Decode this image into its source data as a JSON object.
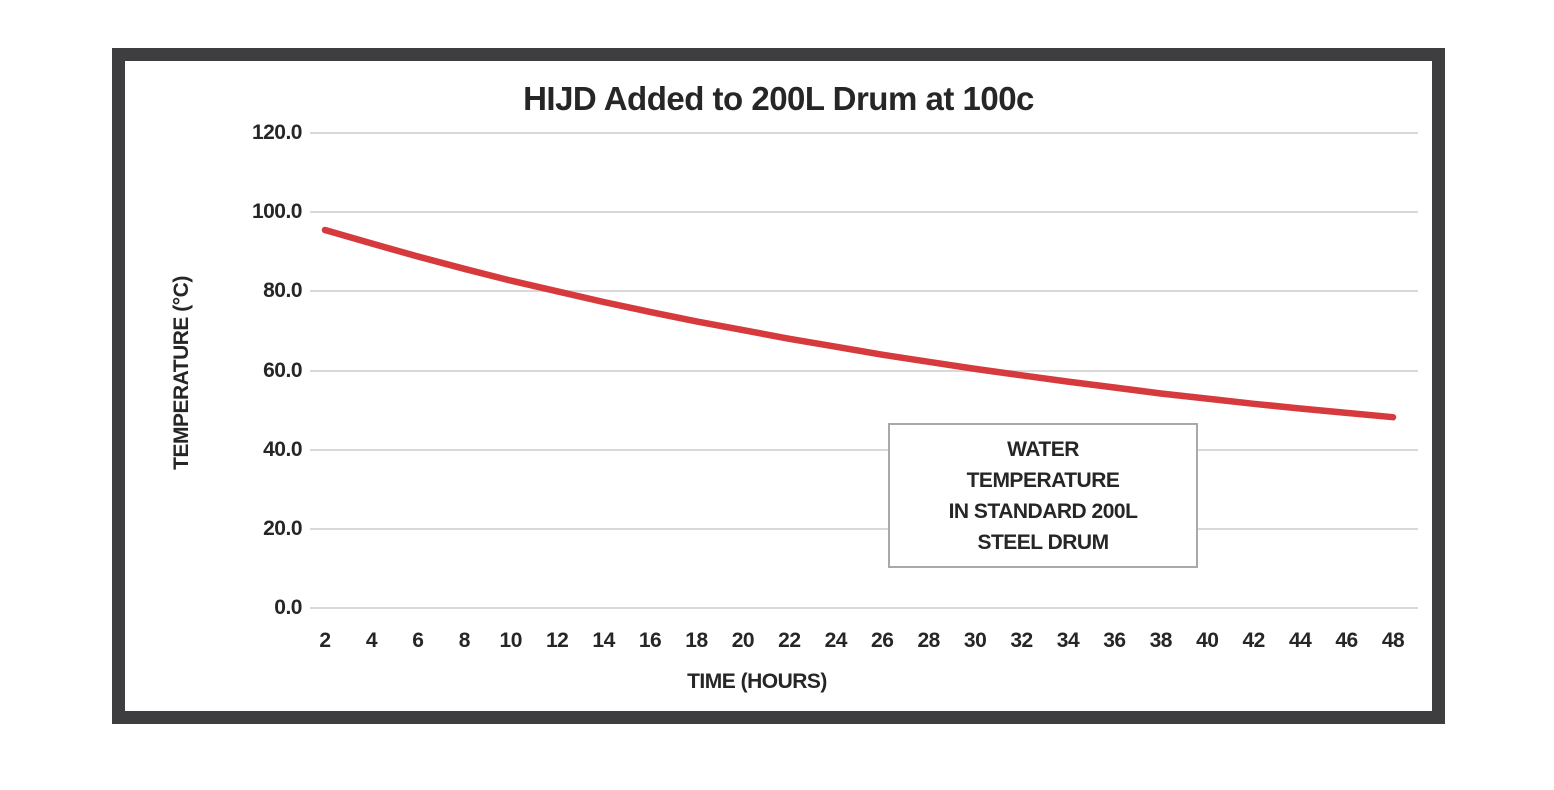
{
  "page": {
    "background_color": "#ffffff",
    "frame_color": "#3e3e40",
    "text_color": "#262626"
  },
  "chart_data": {
    "type": "line",
    "title": "HIJD Added to 200L Drum at 100c",
    "xlabel": "TIME (HOURS)",
    "ylabel": "TEMPERATURE (°C)",
    "x": [
      2,
      4,
      6,
      8,
      10,
      12,
      14,
      16,
      18,
      20,
      22,
      24,
      26,
      28,
      30,
      32,
      34,
      36,
      38,
      40,
      42,
      44,
      46,
      48
    ],
    "series": [
      {
        "name": "WATER TEMPERATURE IN STANDARD 200L STEEL DRUM",
        "color": "#d63a3c",
        "values": [
          95.5,
          92.1,
          88.8,
          85.7,
          82.7,
          80.0,
          77.3,
          74.8,
          72.4,
          70.2,
          68.0,
          66.0,
          64.0,
          62.2,
          60.4,
          58.8,
          57.2,
          55.7,
          54.2,
          52.9,
          51.6,
          50.4,
          49.3,
          48.2
        ]
      }
    ],
    "ylim": [
      0,
      120
    ],
    "yticks": [
      120,
      100,
      80,
      60,
      40,
      20,
      0
    ],
    "ytick_labels": [
      "120.0",
      "100.0",
      "80.0",
      "60.0",
      "40.0",
      "20.0",
      "0.0"
    ],
    "grid": "horizontal-only",
    "gridline_color": "#d9d9d9",
    "legend_position": "none",
    "annotation": {
      "lines": [
        "WATER",
        "TEMPERATURE",
        "IN STANDARD 200L",
        "STEEL DRUM"
      ],
      "border_color": "#a9a9a9"
    }
  }
}
